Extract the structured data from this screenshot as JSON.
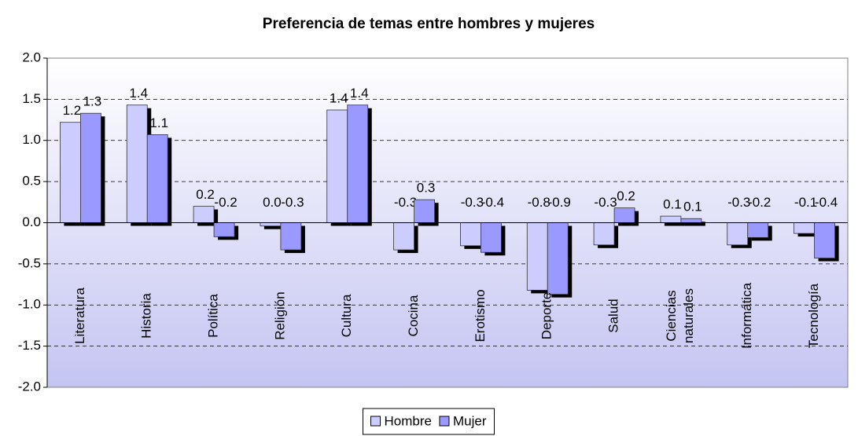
{
  "chart_data": {
    "type": "bar",
    "title": "Preferencia de temas entre hombres y mujeres",
    "categories": [
      "Literatura",
      "Historia",
      "Política",
      "Religión",
      "Cultura",
      "Cocina",
      "Erotismo",
      "Deporte",
      "Salud",
      "Ciencias naturales",
      "Informática",
      "Tecnología"
    ],
    "series": [
      {
        "name": "Hombre",
        "color": "#ccccff",
        "values": [
          1.22,
          1.43,
          0.2,
          -0.04,
          1.37,
          -0.33,
          -0.28,
          -0.82,
          -0.27,
          0.08,
          -0.27,
          -0.13
        ],
        "value_labels": [
          "1.2",
          "1.4",
          "0.2",
          "0.0",
          "1.4",
          "-0.3",
          "-0.3",
          "-0.8",
          "-0.3",
          "0.1",
          "-0.3",
          "-0.1"
        ]
      },
      {
        "name": "Mujer",
        "color": "#9999ff",
        "values": [
          1.33,
          1.07,
          -0.17,
          -0.33,
          1.43,
          0.28,
          -0.36,
          -0.87,
          0.18,
          0.05,
          -0.18,
          -0.43
        ],
        "value_labels": [
          "1.3",
          "1.1",
          "-0.2",
          "-0.3",
          "1.4",
          "0.3",
          "-0.4",
          "-0.9",
          "0.2",
          "0.1",
          "-0.2",
          "-0.4"
        ]
      }
    ],
    "ylim": [
      -2,
      2
    ],
    "yticks": [
      {
        "value": -2,
        "label": "-2.0"
      },
      -1.5,
      {
        "value": -1,
        "label": "-1.0"
      },
      -0.5,
      {
        "value": 0,
        "label": "0.0"
      },
      0.5,
      {
        "value": 1,
        "label": "1.0"
      },
      1.5,
      {
        "value": 2,
        "label": "2.0"
      }
    ],
    "grid": true,
    "legend": "bottom"
  }
}
